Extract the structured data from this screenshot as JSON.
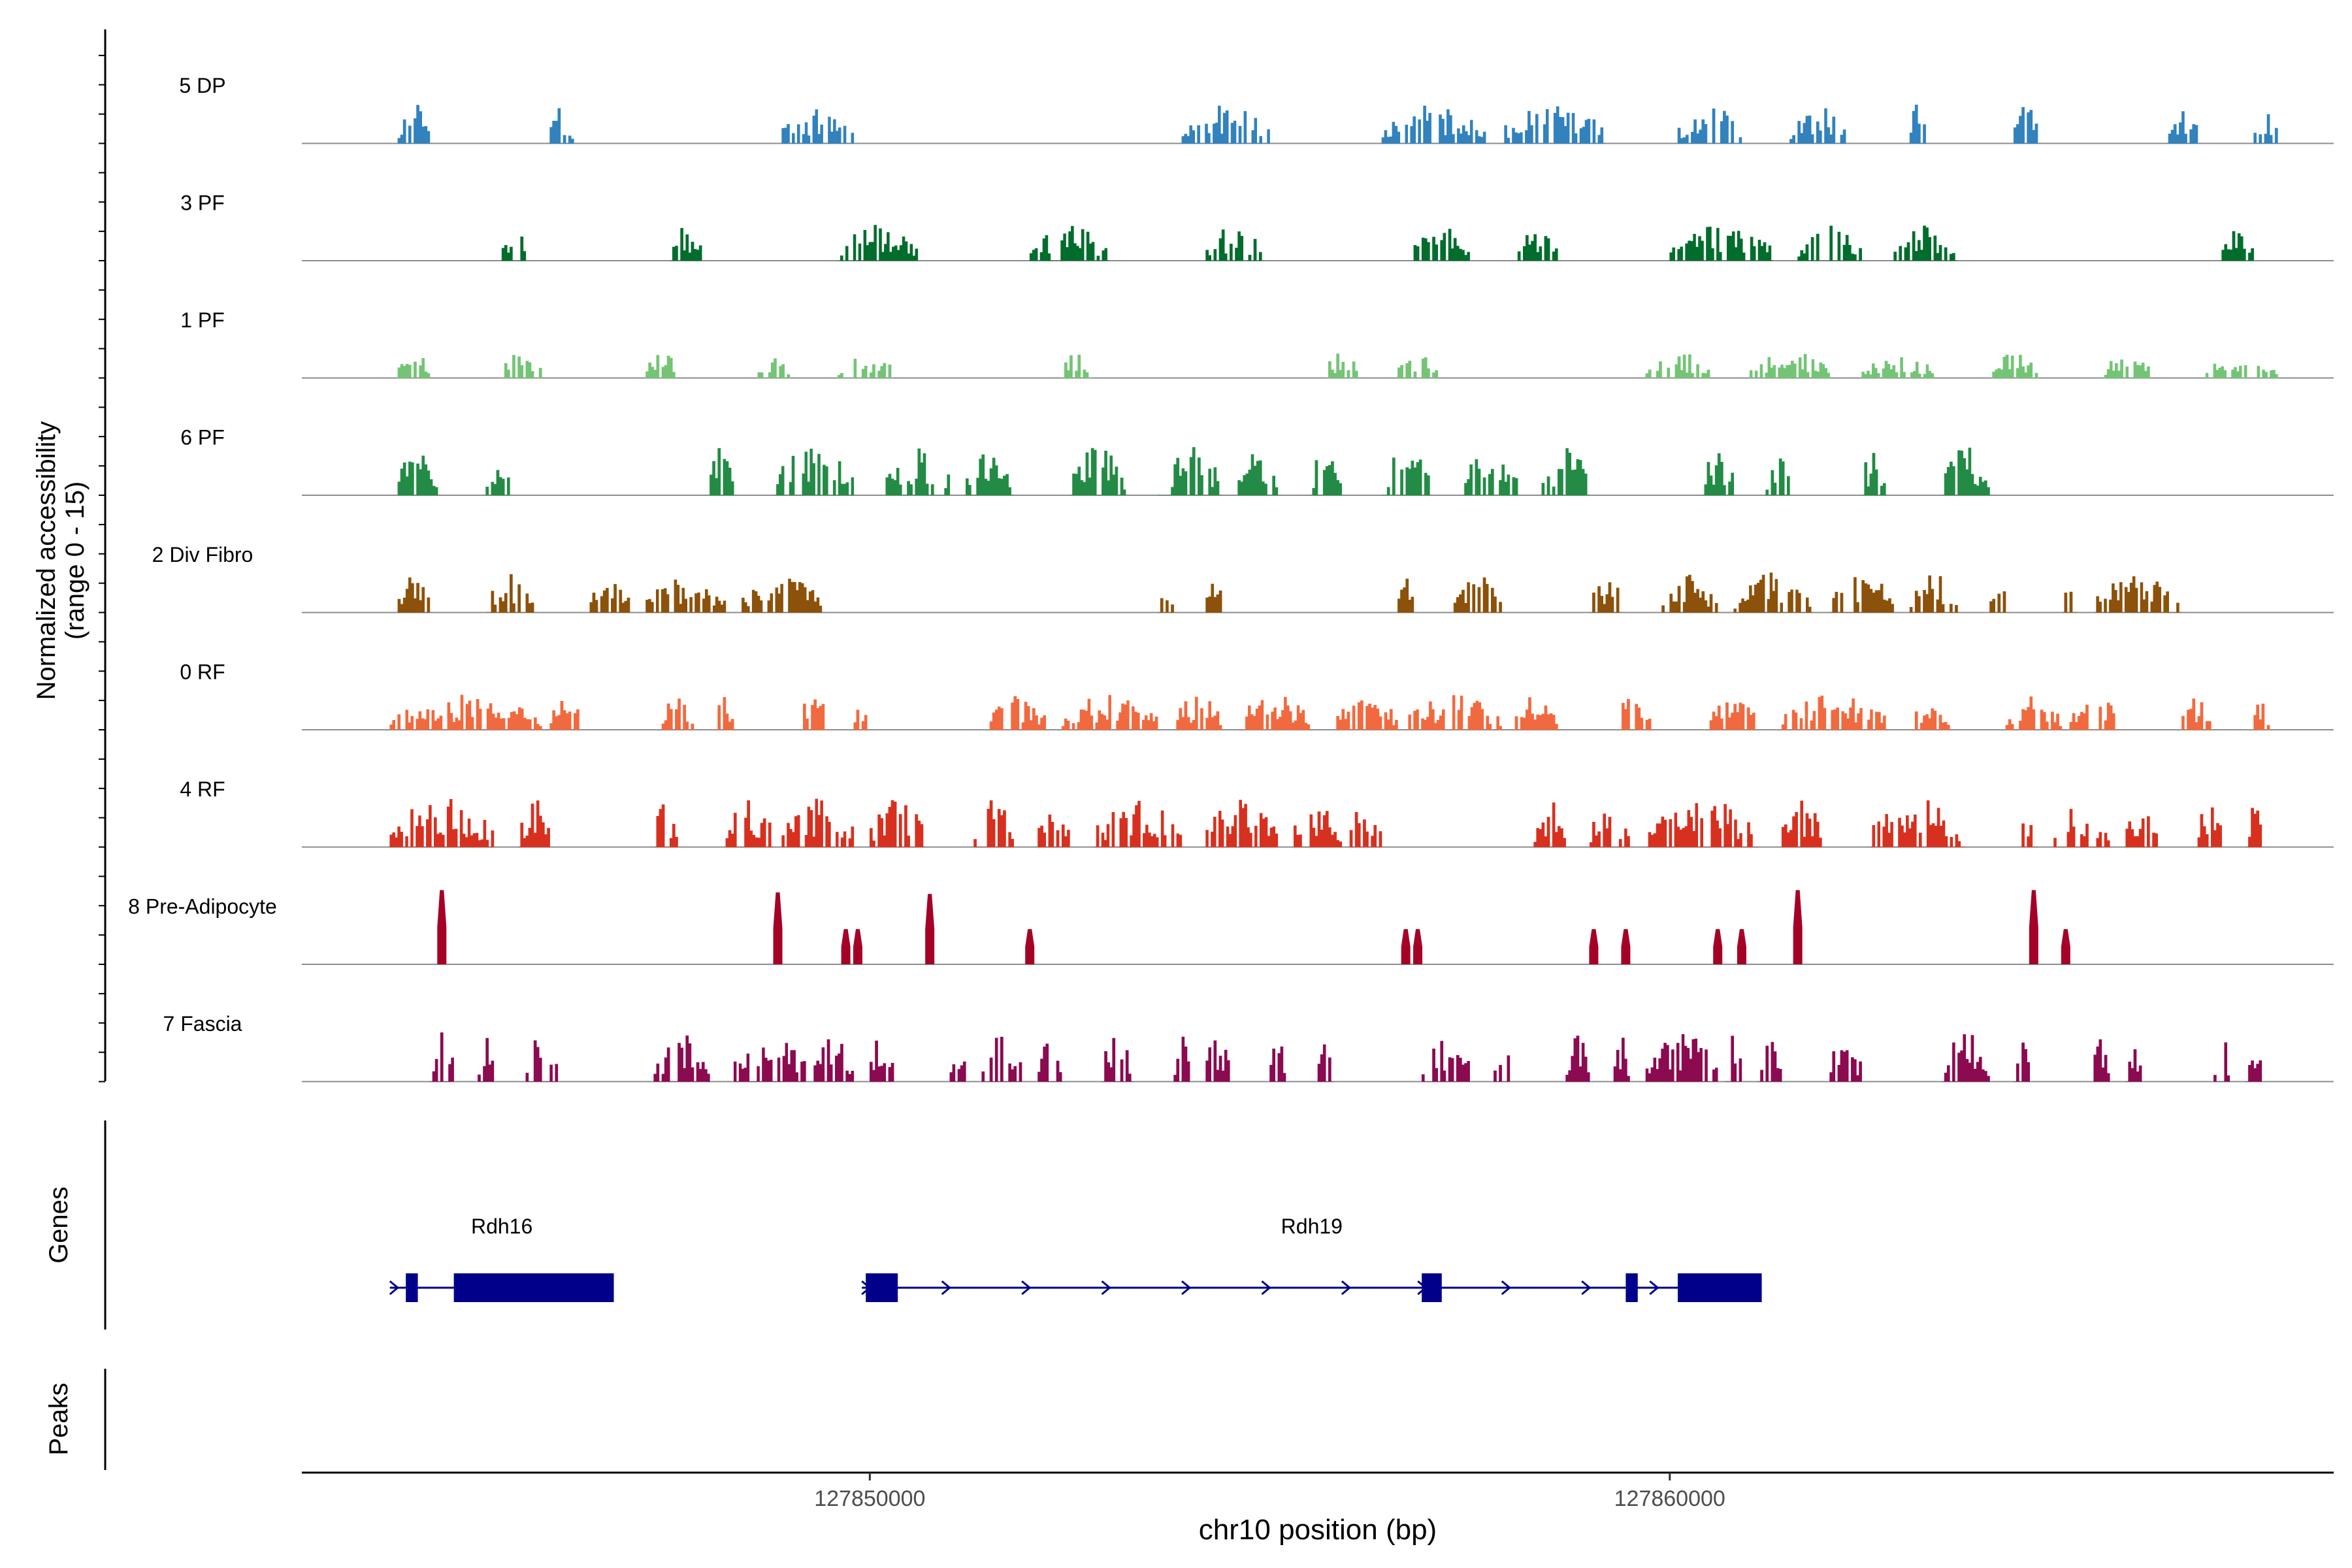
{
  "chart_data": {
    "type": "area",
    "title": "",
    "y_axis_title": "Normalized accessibility",
    "y_axis_subtitle": "(range 0 - 15)",
    "ylim": [
      0,
      15
    ],
    "xlabel": "chr10 position (bp)",
    "xlim": [
      127842900,
      127868300
    ],
    "x_ticks": [
      {
        "value": 127850000,
        "label": "127850000"
      },
      {
        "value": 127860000,
        "label": "127860000"
      }
    ],
    "genes_label": "Genes",
    "peaks_label": "Peaks",
    "tracks": [
      {
        "name": "5 DP",
        "color": "#3182bd",
        "seed": 11,
        "density": 0.55,
        "amp": 0.45,
        "peaks": [
          [
            127844100,
            127844500
          ],
          [
            127846000,
            127846300
          ],
          [
            127848900,
            127849800
          ],
          [
            127853900,
            127855000
          ],
          [
            127856400,
            127857700
          ],
          [
            127857900,
            127859200
          ],
          [
            127860100,
            127860900
          ],
          [
            127861500,
            127862200
          ],
          [
            127863000,
            127863200
          ],
          [
            127864300,
            127864600
          ],
          [
            127866200,
            127866600
          ],
          [
            127867300,
            127867600
          ]
        ]
      },
      {
        "name": "3 PF",
        "color": "#006d2c",
        "seed": 23,
        "density": 0.5,
        "amp": 0.4,
        "peaks": [
          [
            127845400,
            127845700
          ],
          [
            127847500,
            127847900
          ],
          [
            127849600,
            127850600
          ],
          [
            127852000,
            127853000
          ],
          [
            127854200,
            127854900
          ],
          [
            127856800,
            127857500
          ],
          [
            127858100,
            127858600
          ],
          [
            127860000,
            127861300
          ],
          [
            127861600,
            127862400
          ],
          [
            127862800,
            127863600
          ],
          [
            127866900,
            127867300
          ]
        ]
      },
      {
        "name": "1 PF",
        "color": "#74c476",
        "seed": 37,
        "density": 0.5,
        "amp": 0.3,
        "peaks": [
          [
            127844100,
            127844500
          ],
          [
            127845400,
            127845900
          ],
          [
            127847200,
            127847600
          ],
          [
            127848600,
            127849000
          ],
          [
            127849600,
            127850300
          ],
          [
            127852400,
            127852800
          ],
          [
            127855700,
            127856100
          ],
          [
            127856600,
            127857100
          ],
          [
            127859700,
            127860500
          ],
          [
            127861000,
            127862000
          ],
          [
            127862400,
            127863300
          ],
          [
            127864000,
            127864600
          ],
          [
            127865400,
            127866000
          ],
          [
            127866700,
            127867600
          ]
        ]
      },
      {
        "name": "6 PF",
        "color": "#238b45",
        "seed": 53,
        "density": 0.45,
        "amp": 0.55,
        "peaks": [
          [
            127844100,
            127844600
          ],
          [
            127845200,
            127845500
          ],
          [
            127848000,
            127848300
          ],
          [
            127848800,
            127849800
          ],
          [
            127850200,
            127851000
          ],
          [
            127851200,
            127851800
          ],
          [
            127852500,
            127853200
          ],
          [
            127853600,
            127854400
          ],
          [
            127854600,
            127855100
          ],
          [
            127855500,
            127855900
          ],
          [
            127856400,
            127857000
          ],
          [
            127857400,
            127858100
          ],
          [
            127858400,
            127859000
          ],
          [
            127860400,
            127860800
          ],
          [
            127861200,
            127861500
          ],
          [
            127862400,
            127862700
          ],
          [
            127863400,
            127864000
          ]
        ]
      },
      {
        "name": "2 Div Fibro",
        "color": "#8c510a",
        "seed": 67,
        "density": 0.5,
        "amp": 0.45,
        "peaks": [
          [
            127844100,
            127844500
          ],
          [
            127845200,
            127845800
          ],
          [
            127846500,
            127847000
          ],
          [
            127847200,
            127848200
          ],
          [
            127848400,
            127849400
          ],
          [
            127853600,
            127853800
          ],
          [
            127854200,
            127854400
          ],
          [
            127856600,
            127856800
          ],
          [
            127857300,
            127857900
          ],
          [
            127859000,
            127859400
          ],
          [
            127859900,
            127860600
          ],
          [
            127860800,
            127861800
          ],
          [
            127862000,
            127862800
          ],
          [
            127863000,
            127863600
          ],
          [
            127864000,
            127864200
          ],
          [
            127864900,
            127865100
          ],
          [
            127865300,
            127866400
          ]
        ]
      },
      {
        "name": "0 RF",
        "color": "#f16a3f",
        "seed": 79,
        "density": 0.55,
        "amp": 0.4,
        "peaks": [
          [
            127844000,
            127845900
          ],
          [
            127846000,
            127846400
          ],
          [
            127847400,
            127847800
          ],
          [
            127848000,
            127848300
          ],
          [
            127849100,
            127849500
          ],
          [
            127849800,
            127850000
          ],
          [
            127851500,
            127852200
          ],
          [
            127852400,
            127853600
          ],
          [
            127853800,
            127854400
          ],
          [
            127854600,
            127855500
          ],
          [
            127855800,
            127856600
          ],
          [
            127856700,
            127857900
          ],
          [
            127858000,
            127858600
          ],
          [
            127859300,
            127859800
          ],
          [
            127860500,
            127861100
          ],
          [
            127861400,
            127862700
          ],
          [
            127863000,
            127863500
          ],
          [
            127864200,
            127864900
          ],
          [
            127865000,
            127865700
          ],
          [
            127866400,
            127866800
          ],
          [
            127867300,
            127867500
          ]
        ]
      },
      {
        "name": "4 RF",
        "color": "#d7301f",
        "seed": 97,
        "density": 0.55,
        "amp": 0.55,
        "peaks": [
          [
            127844000,
            127845300
          ],
          [
            127845600,
            127846000
          ],
          [
            127847300,
            127847600
          ],
          [
            127848200,
            127848800
          ],
          [
            127848900,
            127849800
          ],
          [
            127850000,
            127850700
          ],
          [
            127851300,
            127851800
          ],
          [
            127852100,
            127852500
          ],
          [
            127852800,
            127853900
          ],
          [
            127854200,
            127855100
          ],
          [
            127855300,
            127855900
          ],
          [
            127856000,
            127856400
          ],
          [
            127858300,
            127858700
          ],
          [
            127859000,
            127859500
          ],
          [
            127859700,
            127861100
          ],
          [
            127861400,
            127861900
          ],
          [
            127862500,
            127863700
          ],
          [
            127864400,
            127864600
          ],
          [
            127864800,
            127865500
          ],
          [
            127865700,
            127866100
          ],
          [
            127866600,
            127866900
          ],
          [
            127867200,
            127867400
          ]
        ]
      },
      {
        "name": "8 Pre-Adipocyte",
        "color": "#a50026",
        "seed": 0,
        "spikes": [
          [
            127844650,
            9.5
          ],
          [
            127848850,
            9.2
          ],
          [
            127850750,
            9.0
          ],
          [
            127856700,
            4.5
          ],
          [
            127856850,
            4.5
          ],
          [
            127859050,
            4.5
          ],
          [
            127859450,
            4.5
          ],
          [
            127860600,
            4.5
          ],
          [
            127860900,
            4.5
          ],
          [
            127861600,
            9.5
          ],
          [
            127864550,
            9.5
          ],
          [
            127864950,
            4.5
          ]
        ],
        "small": [
          [
            127849700,
            4.5
          ],
          [
            127849850,
            4.5
          ],
          [
            127852000,
            4.5
          ]
        ]
      },
      {
        "name": "7 Fascia",
        "color": "#8b0a50",
        "seed": 131,
        "density": 0.5,
        "amp": 0.55,
        "peaks": [
          [
            127844500,
            127844800
          ],
          [
            127845100,
            127845300
          ],
          [
            127845700,
            127846100
          ],
          [
            127847300,
            127848000
          ],
          [
            127848300,
            127849200
          ],
          [
            127849300,
            127849800
          ],
          [
            127850000,
            127850300
          ],
          [
            127851000,
            127851200
          ],
          [
            127851400,
            127851900
          ],
          [
            127852100,
            127852400
          ],
          [
            127852900,
            127853300
          ],
          [
            127853800,
            127854000
          ],
          [
            127854200,
            127854500
          ],
          [
            127855000,
            127855200
          ],
          [
            127855600,
            127855800
          ],
          [
            127856900,
            127857500
          ],
          [
            127857800,
            127858000
          ],
          [
            127858700,
            127859000
          ],
          [
            127859300,
            127859500
          ],
          [
            127859700,
            127860600
          ],
          [
            127860700,
            127860900
          ],
          [
            127861100,
            127861400
          ],
          [
            127862000,
            127862400
          ],
          [
            127863400,
            127864000
          ],
          [
            127864300,
            127864500
          ],
          [
            127865300,
            127865500
          ],
          [
            127865700,
            127865900
          ],
          [
            127866800,
            127867000
          ],
          [
            127867200,
            127867400
          ]
        ]
      }
    ],
    "genes": [
      {
        "name": "Rdh16",
        "start": 127844000,
        "end": 127846800,
        "strand": "+",
        "exons": [
          [
            127844200,
            127844350
          ],
          [
            127844800,
            127846800
          ]
        ],
        "arrows": [
          127844050
        ]
      },
      {
        "name": "Rdh19",
        "start": 127849900,
        "end": 127861150,
        "strand": "+",
        "exons": [
          [
            127849950,
            127850350
          ],
          [
            127856900,
            127857150
          ],
          [
            127859450,
            127859600
          ],
          [
            127860100,
            127861150
          ]
        ],
        "arrows": [
          127849950,
          127850950,
          127851950,
          127852950,
          127853950,
          127854950,
          127855950,
          127856900,
          127857950,
          127858950,
          127859800
        ]
      }
    ],
    "peaks": []
  }
}
